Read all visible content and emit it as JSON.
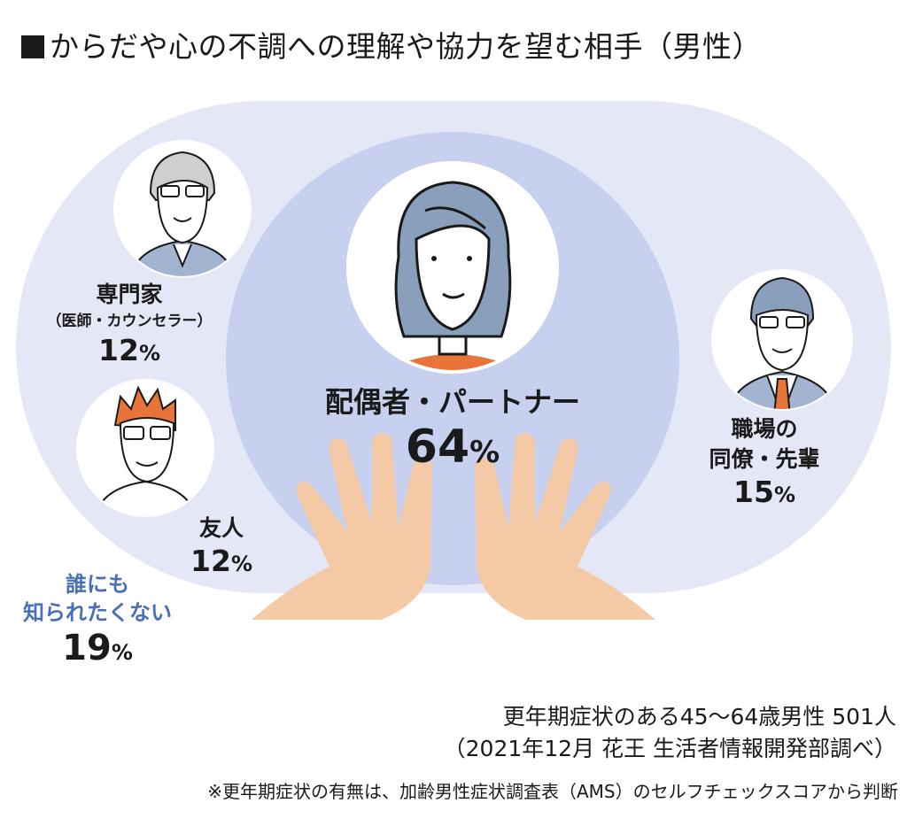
{
  "title": "からだや心の不調への理解や協力を望む相手（男性）",
  "chart_data": {
    "type": "bubble",
    "title": "からだや心の不調への理解や協力を望む相手（男性）",
    "unit": "%",
    "categories": [
      {
        "name": "配偶者・パートナー",
        "sub": "",
        "value": 64
      },
      {
        "name": "職場の同僚・先輩",
        "sub": "",
        "value": 15
      },
      {
        "name": "専門家",
        "sub": "（医師・カウンセラー）",
        "value": 12
      },
      {
        "name": "友人",
        "sub": "",
        "value": 12
      },
      {
        "name": "誰にも知られたくない",
        "sub": "",
        "value": 19
      }
    ],
    "labels": {
      "partner": {
        "name": "配偶者・パートナー",
        "value": "64"
      },
      "coworker": {
        "line1": "職場の",
        "line2": "同僚・先輩",
        "value": "15"
      },
      "expert": {
        "name": "専門家",
        "sub": "（医師・カウンセラー）",
        "value": "12"
      },
      "friend": {
        "name": "友人",
        "value": "12"
      },
      "nobody": {
        "line1": "誰にも",
        "line2": "知られたくない",
        "value": "19"
      }
    },
    "percent_sign": "%"
  },
  "source": {
    "line1": "更年期症状のある45〜64歳男性 501人",
    "line2": "（2021年12月 花王 生活者情報開発部調べ）"
  },
  "note": "※更年期症状の有無は、加齢男性症状調査表（AMS）のセルフチェックスコアから判断",
  "colors": {
    "outer": "#e4e8f6",
    "inner": "#c7d0ee",
    "skin": "#f4c9a6",
    "hair_partner": "#8a9fbc",
    "hair_friend": "#e8743b",
    "shirt_partner": "#e8743b",
    "tie": "#e8743b",
    "suit": "#a3b4d0",
    "label_blue": "#4a6fb8"
  }
}
